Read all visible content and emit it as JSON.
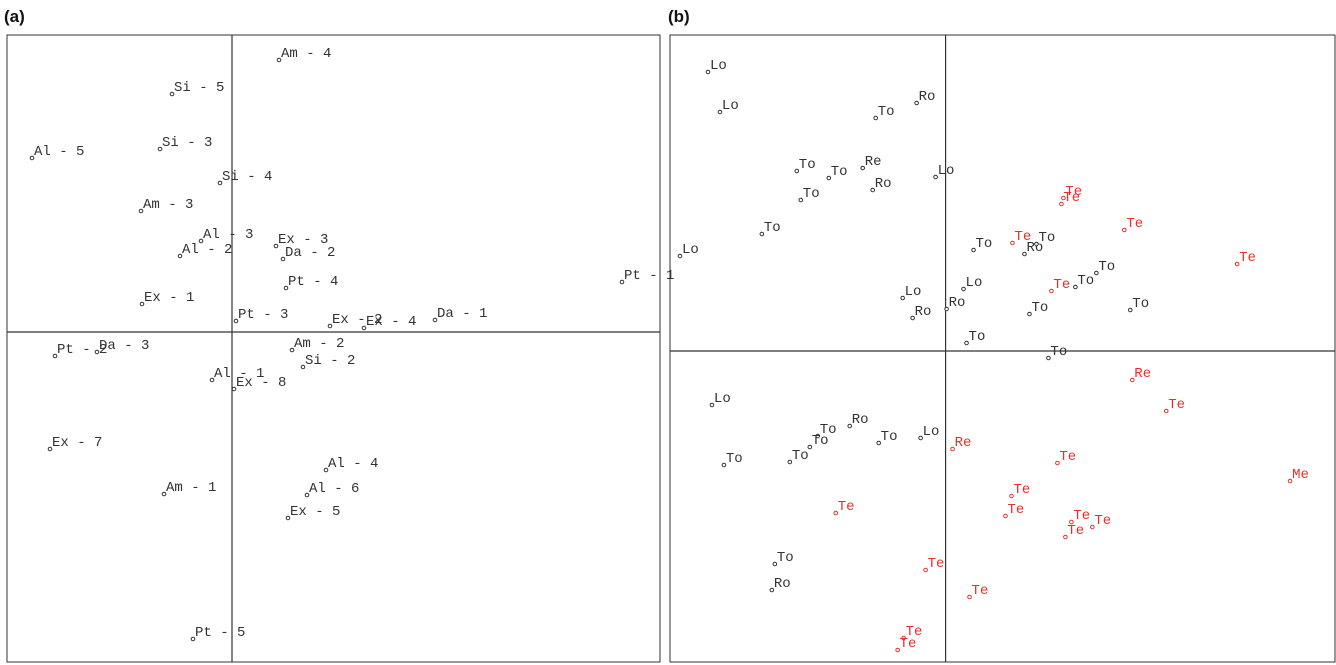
{
  "chart_data": [
    {
      "type": "scatter",
      "title": "(a)",
      "xlim": [
        -22.5,
        42.8
      ],
      "ylim": [
        -33,
        29.7
      ],
      "series": [
        {
          "color": "#333333",
          "labels": [
            "Am - 4",
            "Si - 5",
            "Al - 5",
            "Si - 3",
            "Si - 4",
            "Am - 3",
            "Al - 3",
            "Ex - 3",
            "Al - 2",
            "Da - 2",
            "Pt - 1",
            "Pt - 4",
            "Ex - 1",
            "Pt - 3",
            "Ex - 2",
            "Ex - 4",
            "Da - 1",
            "Am - 2",
            "Si - 2",
            "Pt - 2",
            "Da - 3",
            "Al - 1",
            "Ex - 8",
            "Ex - 7",
            "Al - 4",
            "Am - 1",
            "Al - 6",
            "Ex - 5",
            "Pt - 5"
          ],
          "x": [
            4.7,
            -6.0,
            -20.0,
            -7.2,
            -1.2,
            -9.1,
            -3.1,
            4.4,
            -5.2,
            5.1,
            39.0,
            5.4,
            -9.0,
            0.4,
            9.8,
            13.2,
            20.3,
            6.0,
            7.1,
            -17.7,
            -13.5,
            -2.0,
            0.2,
            -18.2,
            9.4,
            -6.8,
            7.5,
            5.6,
            -3.9
          ],
          "y": [
            27.2,
            23.8,
            17.4,
            18.3,
            14.9,
            12.1,
            9.1,
            8.6,
            7.6,
            7.3,
            5.0,
            4.4,
            2.8,
            1.1,
            0.6,
            0.4,
            1.2,
            -1.8,
            -3.5,
            -2.4,
            -2.0,
            -4.8,
            -5.7,
            -11.7,
            -13.8,
            -16.2,
            -16.3,
            -18.6,
            -30.7
          ]
        }
      ]
    },
    {
      "type": "scatter",
      "title": "(b)",
      "xlim": [
        -27.6,
        39
      ],
      "ylim": [
        -31.1,
        31.6
      ],
      "series": [
        {
          "color": "#333333",
          "labels": [
            "Lo",
            "Lo",
            "To",
            "Ro",
            "To",
            "To",
            "Re",
            "Lo",
            "Ro",
            "To",
            "To",
            "Lo",
            "To",
            "Ro",
            "To",
            "To",
            "To",
            "To",
            "To",
            "Lo",
            "Lo",
            "Ro",
            "Ro",
            "To",
            "To",
            "Lo",
            "To",
            "To",
            "Ro",
            "To",
            "Lo",
            "To",
            "To",
            "To",
            "Ro"
          ],
          "x": [
            -23.8,
            -22.6,
            -7.0,
            -2.9,
            -14.9,
            -11.7,
            -8.3,
            -1.0,
            -7.3,
            -14.5,
            -18.4,
            -26.6,
            2.8,
            7.9,
            9.1,
            13.0,
            15.1,
            8.4,
            18.5,
            1.8,
            -4.3,
            0.1,
            -3.3,
            2.1,
            10.3,
            -23.4,
            -12.8,
            -13.6,
            -9.6,
            -6.7,
            -2.5,
            -22.2,
            -15.6,
            -17.1,
            -17.4
          ],
          "y": [
            27.9,
            23.9,
            23.3,
            24.8,
            18.0,
            17.3,
            18.3,
            17.4,
            16.1,
            15.1,
            11.7,
            9.5,
            10.1,
            9.7,
            10.7,
            6.4,
            7.8,
            3.7,
            4.1,
            6.2,
            5.3,
            4.2,
            3.3,
            0.8,
            -0.7,
            -5.4,
            -8.5,
            -9.6,
            -7.5,
            -9.2,
            -8.7,
            -11.4,
            -11.1,
            -21.3,
            -23.9
          ]
        },
        {
          "color": "#e8302a",
          "labels": [
            "Te",
            "Te",
            "Te",
            "Te",
            "Te",
            "Te",
            "Re",
            "Te",
            "Re",
            "Te",
            "Me",
            "Te",
            "Te",
            "Te",
            "Te",
            "Te",
            "Te",
            "Te",
            "Te",
            "Te",
            "Te"
          ],
          "x": [
            11.6,
            11.8,
            17.9,
            6.7,
            29.2,
            10.6,
            18.7,
            22.1,
            0.7,
            11.2,
            34.5,
            6.6,
            6.0,
            12.6,
            14.7,
            12.0,
            -11.0,
            -2.0,
            2.4,
            -4.2,
            -4.8
          ],
          "y": [
            14.7,
            15.3,
            12.1,
            10.8,
            8.7,
            6.0,
            -2.9,
            -6.0,
            -9.8,
            -11.2,
            -13.0,
            -14.5,
            -16.5,
            -17.1,
            -17.6,
            -18.6,
            -16.2,
            -21.9,
            -24.6,
            -28.7,
            -29.9
          ]
        }
      ]
    }
  ]
}
